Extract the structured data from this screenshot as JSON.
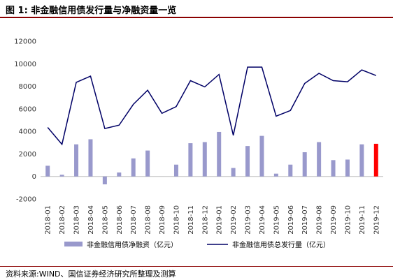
{
  "figure": {
    "title": "图 1:  非金融信用债发行量与净融资量一览",
    "source": "资料来源:WIND、国信证券经济研究所整理及测算"
  },
  "colors": {
    "bar": "#9999cc",
    "bar_highlight": "#ff0000",
    "line": "#000066",
    "rule": "#8b0000"
  },
  "chart_data": {
    "type": "bar",
    "categories": [
      "2018-01",
      "2018-02",
      "2018-03",
      "2018-04",
      "2018-05",
      "2018-06",
      "2018-07",
      "2018-08",
      "2018-09",
      "2018-10",
      "2018-11",
      "2018-12",
      "2019-01",
      "2019-02",
      "2019-03",
      "2019-04",
      "2019-05",
      "2019-06",
      "2019-07",
      "2019-08",
      "2019-09",
      "2019-10",
      "2019-11",
      "2019-12"
    ],
    "series": [
      {
        "name": "非金融信用债净融资（亿元）",
        "type": "bar",
        "values": [
          950,
          150,
          2850,
          3300,
          -700,
          350,
          1600,
          2300,
          0,
          1050,
          2950,
          3050,
          3950,
          750,
          2700,
          3600,
          250,
          1050,
          2150,
          3050,
          1450,
          1500,
          2850,
          2900
        ],
        "highlight_index": 23
      },
      {
        "name": "非金融信用债总发行量（亿元）",
        "type": "line",
        "values": [
          4350,
          2850,
          8350,
          8900,
          4250,
          4550,
          6400,
          7650,
          5600,
          6200,
          8500,
          7950,
          9050,
          3650,
          9700,
          9700,
          5350,
          5850,
          8250,
          9150,
          8500,
          8400,
          9450,
          8950
        ]
      }
    ],
    "ylim": [
      -2000,
      12000
    ],
    "yticks": [
      -2000,
      0,
      2000,
      4000,
      6000,
      8000,
      10000,
      12000
    ],
    "legend_position": "bottom",
    "grid": false
  }
}
